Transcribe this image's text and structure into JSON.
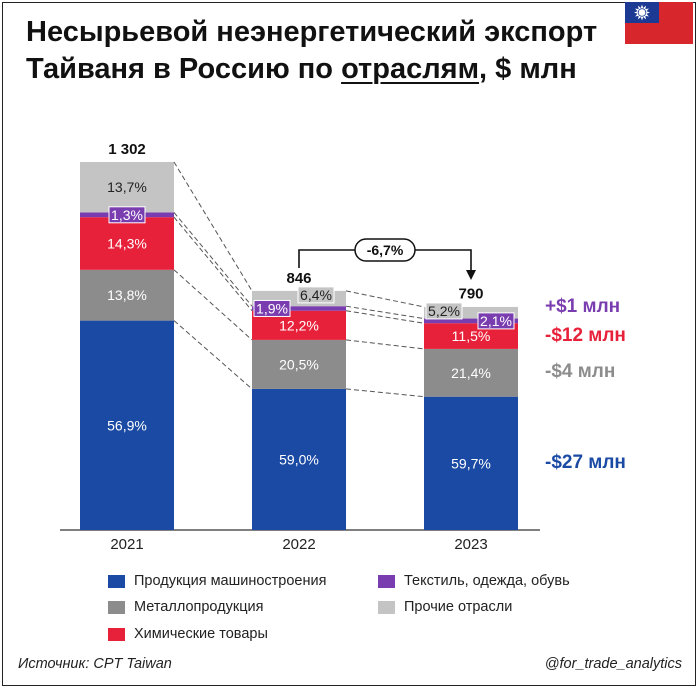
{
  "header": {
    "title_part1": "Несырьевой неэнергетический экспорт Тайваня в Россию по ",
    "title_underlined": "отраслям",
    "title_part2": ", $ млн"
  },
  "colors": {
    "machinery": "#1a4aa3",
    "metal": "#8c8c8c",
    "chemical": "#e8213a",
    "textile": "#7a3db0",
    "other": "#c4c4c4",
    "flag_red": "#d7262c",
    "flag_blue": "#1c3a94"
  },
  "chart_data": {
    "type": "bar",
    "stacked": true,
    "categories": [
      "2021",
      "2022",
      "2023"
    ],
    "totals": [
      1302,
      846,
      790
    ],
    "total_labels": [
      "1 302",
      "846",
      "790"
    ],
    "series": [
      {
        "name": "Продукция машиностроения",
        "key": "machinery",
        "shares": [
          56.9,
          59.0,
          59.7
        ],
        "labels": [
          "56,9%",
          "59,0%",
          "59,7%"
        ]
      },
      {
        "name": "Металлопродукция",
        "key": "metal",
        "shares": [
          13.8,
          20.5,
          21.4
        ],
        "labels": [
          "13,8%",
          "20,5%",
          "21,4%"
        ]
      },
      {
        "name": "Химические товары",
        "key": "chemical",
        "shares": [
          14.3,
          12.2,
          11.5
        ],
        "labels": [
          "14,3%",
          "12,2%",
          "11,5%"
        ]
      },
      {
        "name": "Текстиль, одежда, обувь",
        "key": "textile",
        "shares": [
          1.3,
          1.9,
          2.1
        ],
        "labels": [
          "1,3%",
          "1,9%",
          "2,1%"
        ]
      },
      {
        "name": "Прочие отрасли",
        "key": "other",
        "shares": [
          13.7,
          6.4,
          5.2
        ],
        "labels": [
          "13,7%",
          "6,4%",
          "5,2%"
        ]
      }
    ],
    "change_annotation": {
      "from": "2022",
      "to": "2023",
      "label": "-6,7%"
    },
    "change_labels": [
      {
        "series": "textile",
        "label": "+$1 млн"
      },
      {
        "series": "chemical",
        "label": "-$12 млн"
      },
      {
        "series": "metal",
        "label": "-$4 млн"
      },
      {
        "series": "machinery",
        "label": "-$27 млн"
      }
    ]
  },
  "legend": [
    {
      "key": "machinery",
      "label": "Продукция машиностроения"
    },
    {
      "key": "textile",
      "label": "Текстиль, одежда, обувь"
    },
    {
      "key": "metal",
      "label": "Металлопродукция"
    },
    {
      "key": "other",
      "label": "Прочие отрасли"
    },
    {
      "key": "chemical",
      "label": "Химические товары"
    }
  ],
  "footer": {
    "source": "Источник: CPT Taiwan",
    "handle": "@for_trade_analytics"
  }
}
